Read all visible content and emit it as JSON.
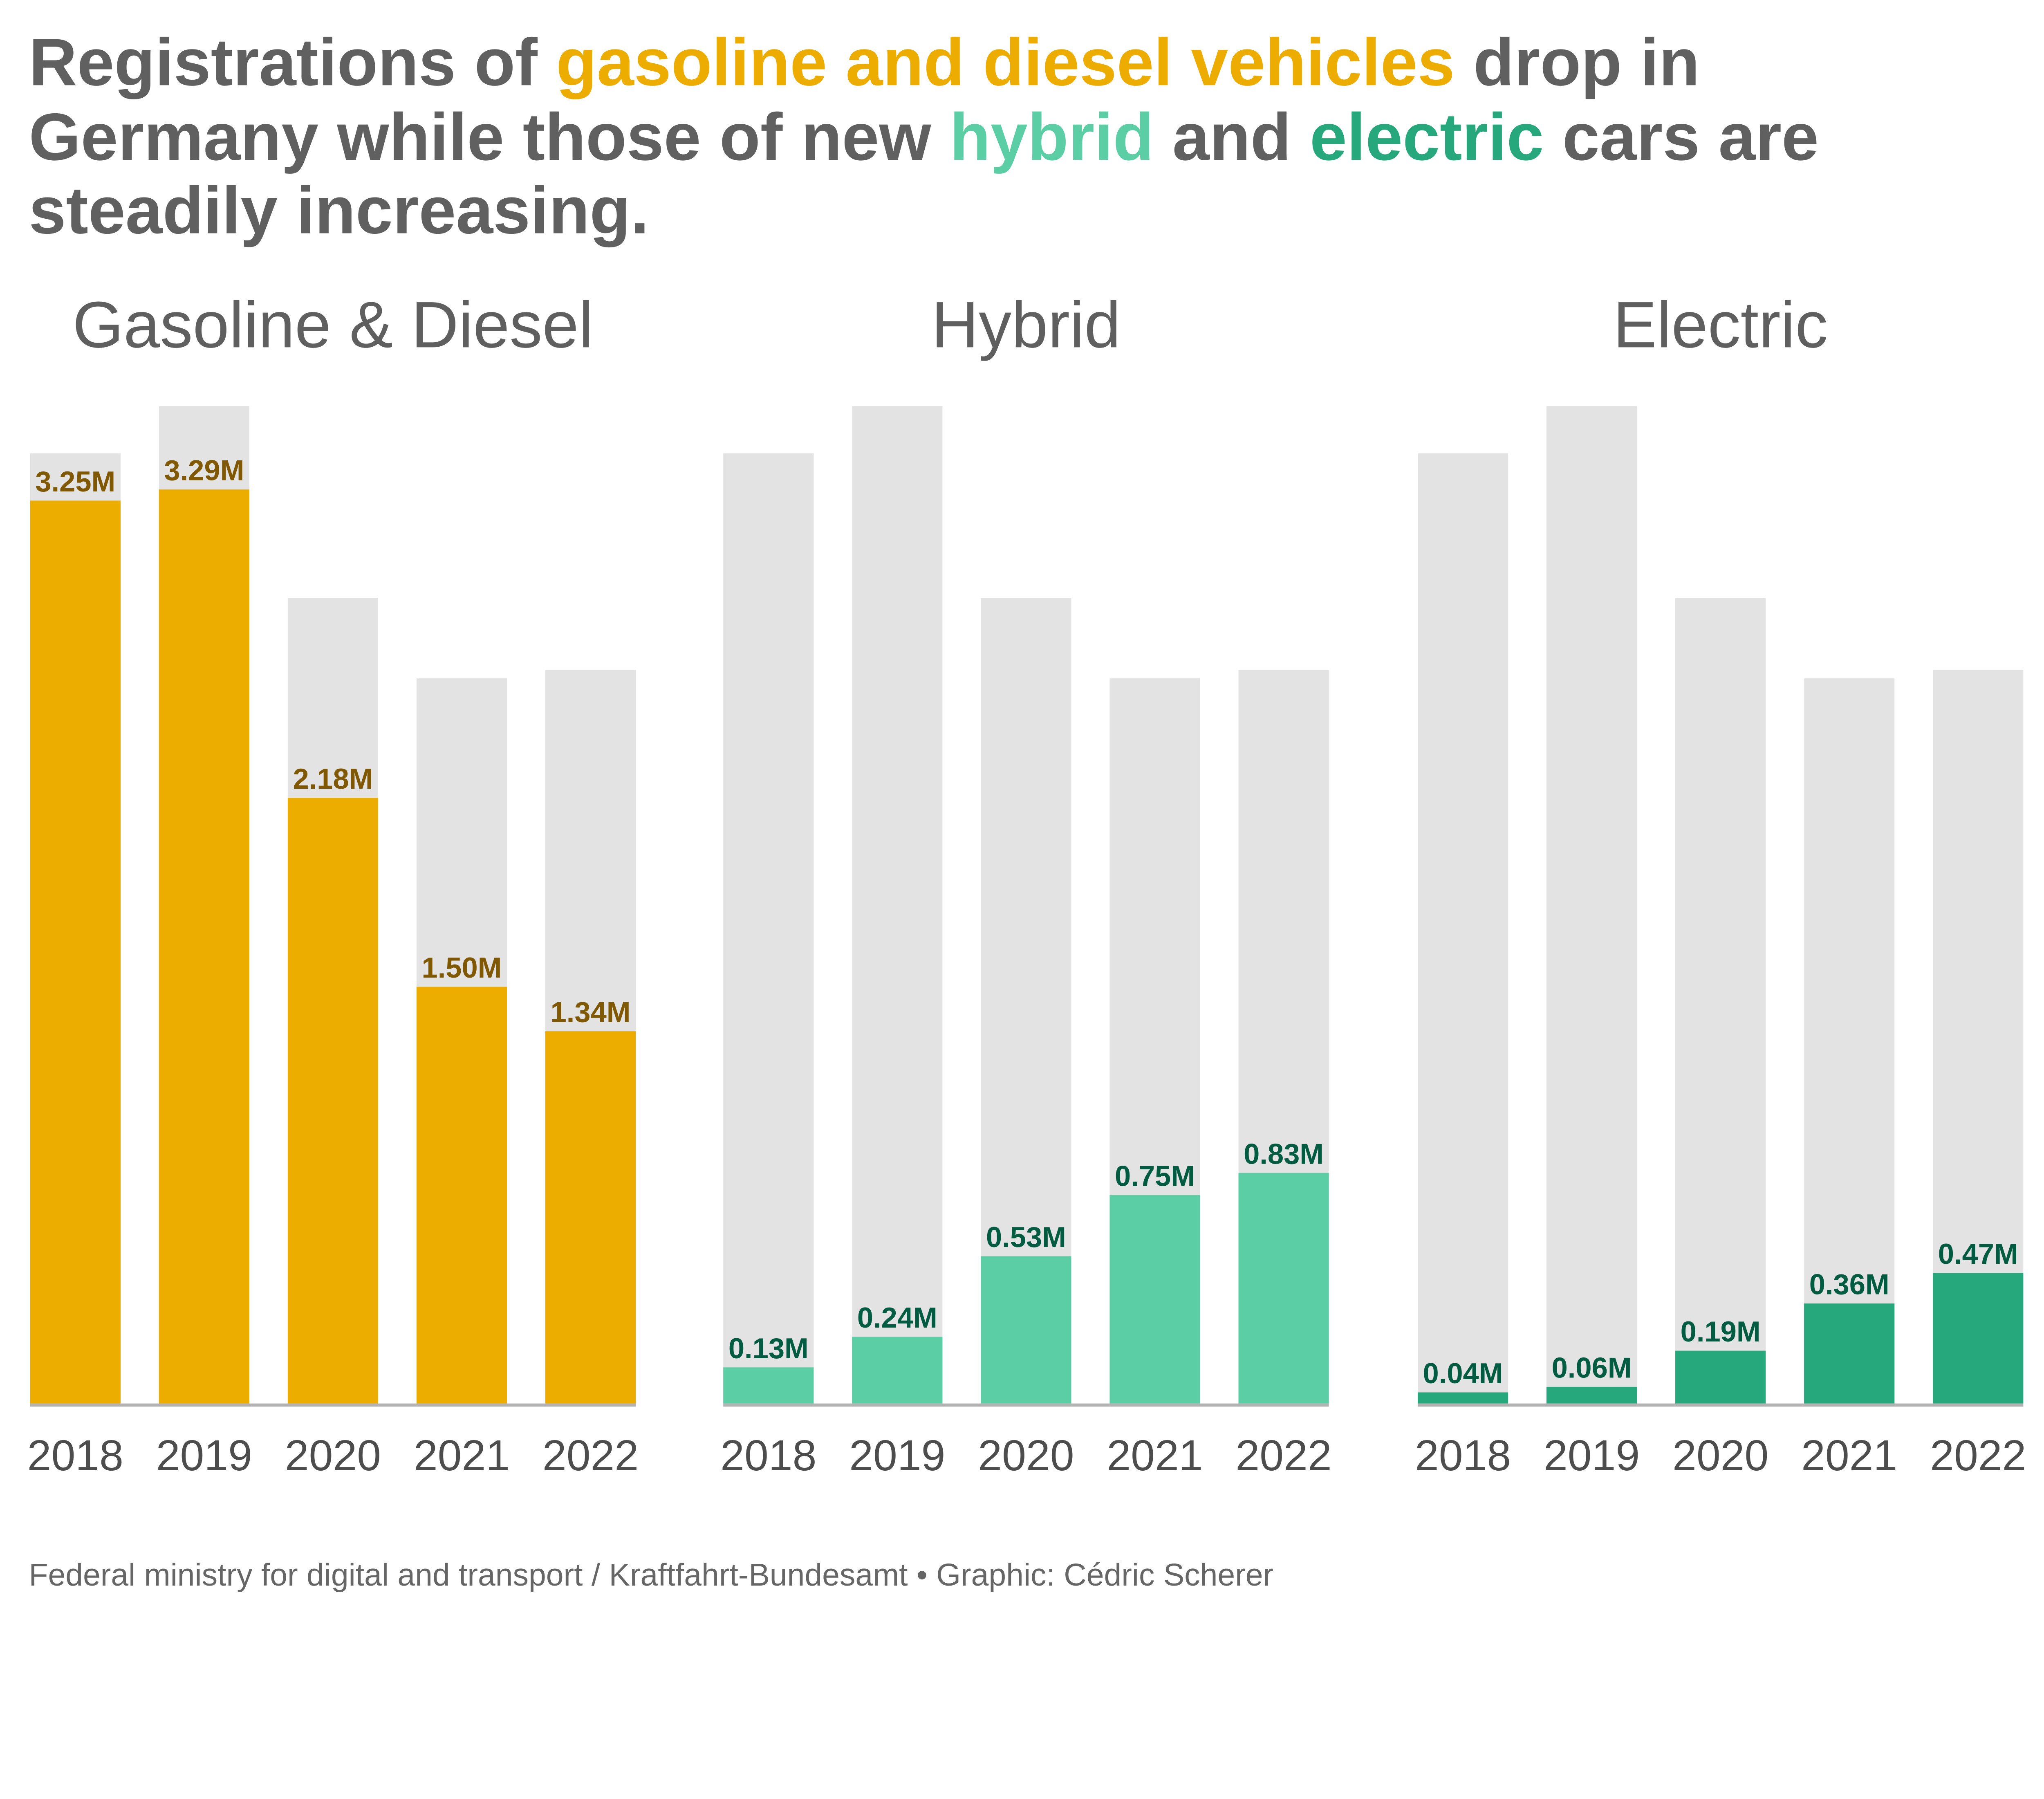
{
  "title": {
    "line1": [
      {
        "text": "Registrations of ",
        "color": "#606060"
      },
      {
        "text": "gasoline and diesel vehicles",
        "color": "#EDAC00"
      },
      {
        "text": " drop in",
        "color": "#606060"
      }
    ],
    "line2": [
      {
        "text": "Germany while those of new ",
        "color": "#606060"
      },
      {
        "text": "hybrid",
        "color": "#5CCEA6"
      },
      {
        "text": " and ",
        "color": "#606060"
      },
      {
        "text": "electric",
        "color": "#27A77C"
      },
      {
        "text": " cars are",
        "color": "#606060"
      }
    ],
    "line3": [
      {
        "text": "steadily increasing.",
        "color": "#606060"
      }
    ]
  },
  "footer": "Federal ministry for digital and transport / Kraftfahrt-Bundesamt • Graphic: Cédric Scherer",
  "chart_data": [
    {
      "type": "bar",
      "title": "Gasoline & Diesel",
      "categories": [
        "2018",
        "2019",
        "2020",
        "2021",
        "2022"
      ],
      "values": [
        3.25,
        3.29,
        2.18,
        1.5,
        1.34
      ],
      "labels": [
        "3.25M",
        "3.29M",
        "2.18M",
        "1.50M",
        "1.34M"
      ],
      "bar_color": "#EDAC00",
      "label_color": "#7F5800",
      "background": "total registrations (grey)"
    },
    {
      "type": "bar",
      "title": "Hybrid",
      "categories": [
        "2018",
        "2019",
        "2020",
        "2021",
        "2022"
      ],
      "values": [
        0.13,
        0.24,
        0.53,
        0.75,
        0.83
      ],
      "labels": [
        "0.13M",
        "0.24M",
        "0.53M",
        "0.75M",
        "0.83M"
      ],
      "bar_color": "#5CCEA6",
      "label_color": "#005C40"
    },
    {
      "type": "bar",
      "title": "Electric",
      "categories": [
        "2018",
        "2019",
        "2020",
        "2021",
        "2022"
      ],
      "values": [
        0.04,
        0.06,
        0.19,
        0.36,
        0.47
      ],
      "labels": [
        "0.04M",
        "0.06M",
        "0.19M",
        "0.36M",
        "0.47M"
      ],
      "bar_color": "#27A77C",
      "label_color": "#005C40"
    }
  ],
  "colors": {
    "total_bar": "#E3E3E3",
    "axis": "#B3B3B3"
  },
  "grid": false,
  "legend": "none"
}
